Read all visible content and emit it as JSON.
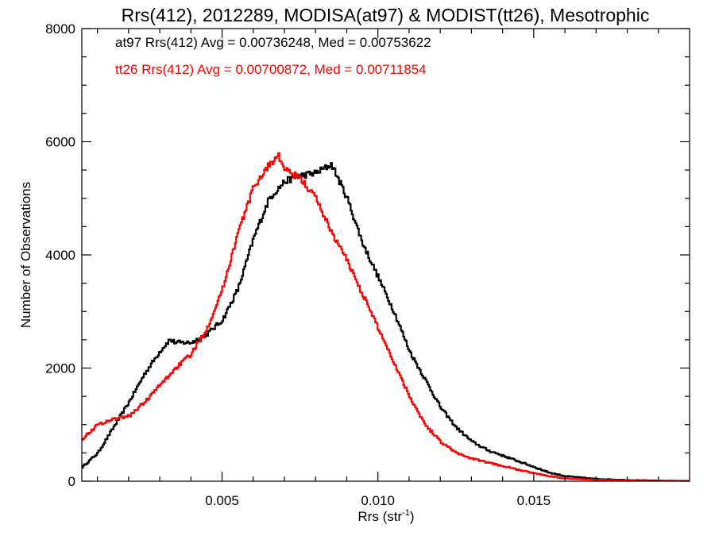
{
  "chart_data": {
    "type": "line",
    "title": "Rrs(412), 2012289, MODISA(at97) & MODIST(tt26), Mesotrophic",
    "xlabel_main": "Rrs (str",
    "xlabel_sup": "-1",
    "xlabel_end": ")",
    "ylabel": "Number of Observations",
    "xlim": [
      0.0005,
      0.02
    ],
    "ylim": [
      0,
      8000
    ],
    "x_ticks": [
      0.005,
      0.01,
      0.015
    ],
    "x_tick_labels": [
      "0.005",
      "0.010",
      "0.015"
    ],
    "y_ticks": [
      0,
      2000,
      4000,
      6000,
      8000
    ],
    "y_tick_labels": [
      "0",
      "2000",
      "4000",
      "6000",
      "8000"
    ],
    "grid": false,
    "legend_position": "top-left",
    "annotations": [
      "at97 Rrs(412) Avg = 0.00736248, Med = 0.00753622",
      "tt26 Rrs(412) Avg = 0.00700872, Med = 0.00711854"
    ],
    "series": [
      {
        "color": "#000000",
        "x": [
          0.0005,
          0.001,
          0.0015,
          0.002,
          0.0025,
          0.003,
          0.0033,
          0.0035,
          0.004,
          0.0045,
          0.005,
          0.0055,
          0.006,
          0.0065,
          0.007,
          0.0075,
          0.008,
          0.0085,
          0.009,
          0.0095,
          0.01,
          0.0105,
          0.011,
          0.0115,
          0.012,
          0.0125,
          0.013,
          0.0135,
          0.014,
          0.0145,
          0.015,
          0.0155,
          0.016,
          0.017,
          0.018,
          0.019,
          0.02
        ],
        "y": [
          250,
          500,
          950,
          1400,
          1900,
          2300,
          2500,
          2450,
          2450,
          2600,
          2850,
          3400,
          4300,
          5000,
          5300,
          5400,
          5450,
          5600,
          5000,
          4200,
          3600,
          3000,
          2300,
          1800,
          1300,
          950,
          700,
          550,
          450,
          350,
          250,
          150,
          90,
          40,
          20,
          10,
          5
        ]
      },
      {
        "color": "#ff0000",
        "x": [
          0.0005,
          0.001,
          0.0015,
          0.002,
          0.0025,
          0.003,
          0.0035,
          0.004,
          0.0045,
          0.005,
          0.0055,
          0.006,
          0.0065,
          0.0068,
          0.007,
          0.0075,
          0.008,
          0.0085,
          0.009,
          0.0095,
          0.01,
          0.0105,
          0.011,
          0.0115,
          0.012,
          0.0125,
          0.013,
          0.0135,
          0.014,
          0.0145,
          0.015,
          0.0155,
          0.016,
          0.017,
          0.018,
          0.019,
          0.02
        ],
        "y": [
          750,
          1000,
          1100,
          1150,
          1400,
          1700,
          2000,
          2250,
          2700,
          3400,
          4400,
          5200,
          5600,
          5750,
          5500,
          5350,
          5000,
          4400,
          3900,
          3300,
          2700,
          2100,
          1500,
          1000,
          700,
          500,
          400,
          330,
          270,
          200,
          140,
          90,
          50,
          25,
          10,
          5,
          2
        ]
      }
    ]
  }
}
